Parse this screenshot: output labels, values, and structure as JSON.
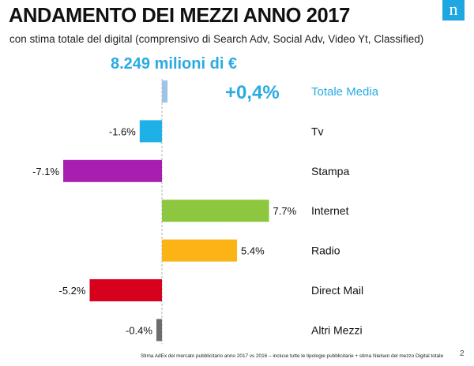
{
  "header": {
    "title": "ANDAMENTO DEI MEZZI ANNO 2017",
    "subtitle": "con stima totale del digital (comprensivo di Search Adv, Social Adv, Video Yt, Classified)",
    "logo_letter": "n"
  },
  "total_label": "8.249 milioni di €",
  "footer": {
    "note": "Stima AdEx del mercato pubblicitario anno 2017 vs 2016 – incluse  tutte le tipologie pubblicitarie + stima Nielsen del mezzo Digital totale",
    "page": "2"
  },
  "colors": {
    "accent": "#29abe2",
    "title": "#111111"
  },
  "chart_data": {
    "type": "bar",
    "orientation": "horizontal",
    "unit": "%",
    "categories": [
      "Totale Media",
      "Tv",
      "Stampa",
      "Internet",
      "Radio",
      "Direct Mail",
      "Altri Mezzi"
    ],
    "values": [
      0.4,
      -1.6,
      -7.1,
      7.7,
      5.4,
      -5.2,
      -0.4
    ],
    "value_labels": [
      "+0,4%",
      "-1.6%",
      "-7.1%",
      "7.7%",
      "5.4%",
      "-5.2%",
      "-0.4%"
    ],
    "colors": [
      "#9dc3e6",
      "#1eb1e8",
      "#a81fb0",
      "#8dc63f",
      "#fbb315",
      "#d7001d",
      "#6d6d6d"
    ],
    "highlight_category": "Totale Media",
    "highlight_color": "#29abe2"
  }
}
